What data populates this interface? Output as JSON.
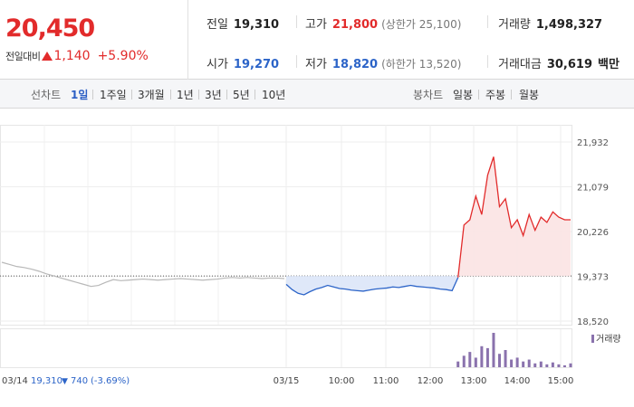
{
  "quote": {
    "price": "20,450",
    "change_label": "전일대비",
    "change_value": "1,140",
    "change_pct": "+5.90%",
    "prev_close": {
      "label": "전일",
      "value": "19,310"
    },
    "open": {
      "label": "시가",
      "value": "19,270"
    },
    "high": {
      "label": "고가",
      "value": "21,800",
      "sub": "(상한가 25,100)"
    },
    "low": {
      "label": "저가",
      "value": "18,820",
      "sub": "(하한가 13,520)"
    },
    "volume": {
      "label": "거래량",
      "value": "1,498,327"
    },
    "amount": {
      "label": "거래대금",
      "value": "30,619",
      "unit": "백만"
    }
  },
  "toolbar": {
    "line_label": "선차트",
    "ranges": [
      "1일",
      "1주일",
      "3개월",
      "1년",
      "3년",
      "5년",
      "10년"
    ],
    "active_range": "1일",
    "candle_label": "봉차트",
    "candles": [
      "일봉",
      "주봉",
      "월봉"
    ]
  },
  "colors": {
    "up": "#e22b2b",
    "down": "#2c64c8",
    "prev_day": "#b8b8b8",
    "volume": "#8a72ad"
  },
  "chart_data": {
    "type": "line",
    "y_ticks": [
      "21,932",
      "21,079",
      "20,226",
      "19,373",
      "18,520"
    ],
    "ylim": [
      18520,
      21932
    ],
    "reference_value": 19310,
    "x_ticks": [
      "03/15",
      "10:00",
      "11:00",
      "12:00",
      "13:00",
      "14:00",
      "15:00"
    ],
    "prev_day": {
      "date": "03/14",
      "summary": "19,310",
      "change": "740",
      "change_pct": "(-3.69%)",
      "values": [
        19640,
        19600,
        19560,
        19540,
        19510,
        19470,
        19420,
        19380,
        19340,
        19300,
        19260,
        19220,
        19180,
        19200,
        19260,
        19310,
        19290,
        19300,
        19310,
        19320,
        19310,
        19300,
        19310,
        19320,
        19330,
        19320,
        19310,
        19300,
        19310,
        19320,
        19340,
        19350,
        19340,
        19350,
        19340,
        19330,
        19340,
        19340,
        19330
      ]
    },
    "today": {
      "values": [
        19220,
        19120,
        19050,
        19020,
        19080,
        19130,
        19160,
        19200,
        19170,
        19140,
        19130,
        19110,
        19100,
        19090,
        19110,
        19130,
        19140,
        19150,
        19170,
        19160,
        19180,
        19200,
        19180,
        19170,
        19160,
        19150,
        19130,
        19120,
        19100,
        19350,
        20350,
        20450,
        20900,
        20550,
        21300,
        21650,
        20700,
        20850,
        20300,
        20450,
        20150,
        20550,
        20250,
        20500,
        20400,
        20600,
        20500,
        20450,
        20450
      ]
    },
    "volume_label": "거래량",
    "volume": [
      0,
      0,
      0,
      0,
      0,
      0,
      0,
      0,
      0,
      0,
      0,
      0,
      0,
      0,
      0,
      0,
      0,
      0,
      0,
      0,
      0,
      0,
      0,
      0,
      0,
      0,
      0,
      0,
      0,
      6,
      12,
      16,
      10,
      22,
      20,
      36,
      14,
      18,
      8,
      10,
      6,
      8,
      4,
      6,
      3,
      5,
      3,
      2,
      4
    ]
  }
}
